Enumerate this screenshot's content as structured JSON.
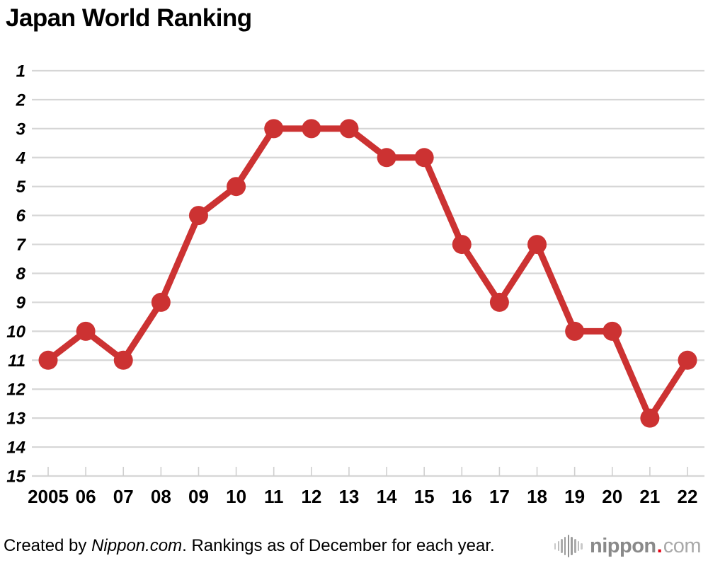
{
  "title": "Japan World Ranking",
  "chart_data": {
    "type": "line",
    "title": "Japan World Ranking",
    "categories": [
      "2005",
      "06",
      "07",
      "08",
      "09",
      "10",
      "11",
      "12",
      "13",
      "14",
      "15",
      "16",
      "17",
      "18",
      "19",
      "20",
      "21",
      "22"
    ],
    "values": [
      11,
      10,
      11,
      9,
      6,
      5,
      3,
      3,
      3,
      4,
      4,
      7,
      9,
      7,
      10,
      10,
      13,
      11
    ],
    "xlabel": "",
    "ylabel": "",
    "y_ticks": [
      1,
      2,
      3,
      4,
      5,
      6,
      7,
      8,
      9,
      10,
      11,
      12,
      13,
      14,
      15
    ],
    "ylim": [
      1,
      15
    ],
    "y_axis_inverted": true,
    "grid": "horizontal-only",
    "legend_position": "none",
    "line_color": "#cc3232",
    "marker": "circle",
    "marker_radius": 13.5,
    "line_width": 9,
    "grid_color": "#d6d6d6",
    "tick_color": "#cfcfcf"
  },
  "footer": {
    "created_by_prefix": "Created by ",
    "source_name": "Nippon.com",
    "suffix": ". Rankings as of December for each year."
  },
  "logo": {
    "icon": "waveform-icon",
    "wordmark_main": "nippon",
    "wordmark_dot": ".",
    "wordmark_tld": "com",
    "main_color": "#8a8a8a",
    "tld_color": "#a9a9a9",
    "dot_color": "#e60012",
    "wave_bar_heights": [
      9,
      14,
      20,
      26,
      32,
      26,
      20,
      14,
      9
    ],
    "wave_bar_colors": [
      "#c9c9c9",
      "#bcbcbc",
      "#ababab",
      "#9c9c9c",
      "#929292",
      "#9c9c9c",
      "#ababab",
      "#bcbcbc",
      "#c9c9c9"
    ]
  }
}
